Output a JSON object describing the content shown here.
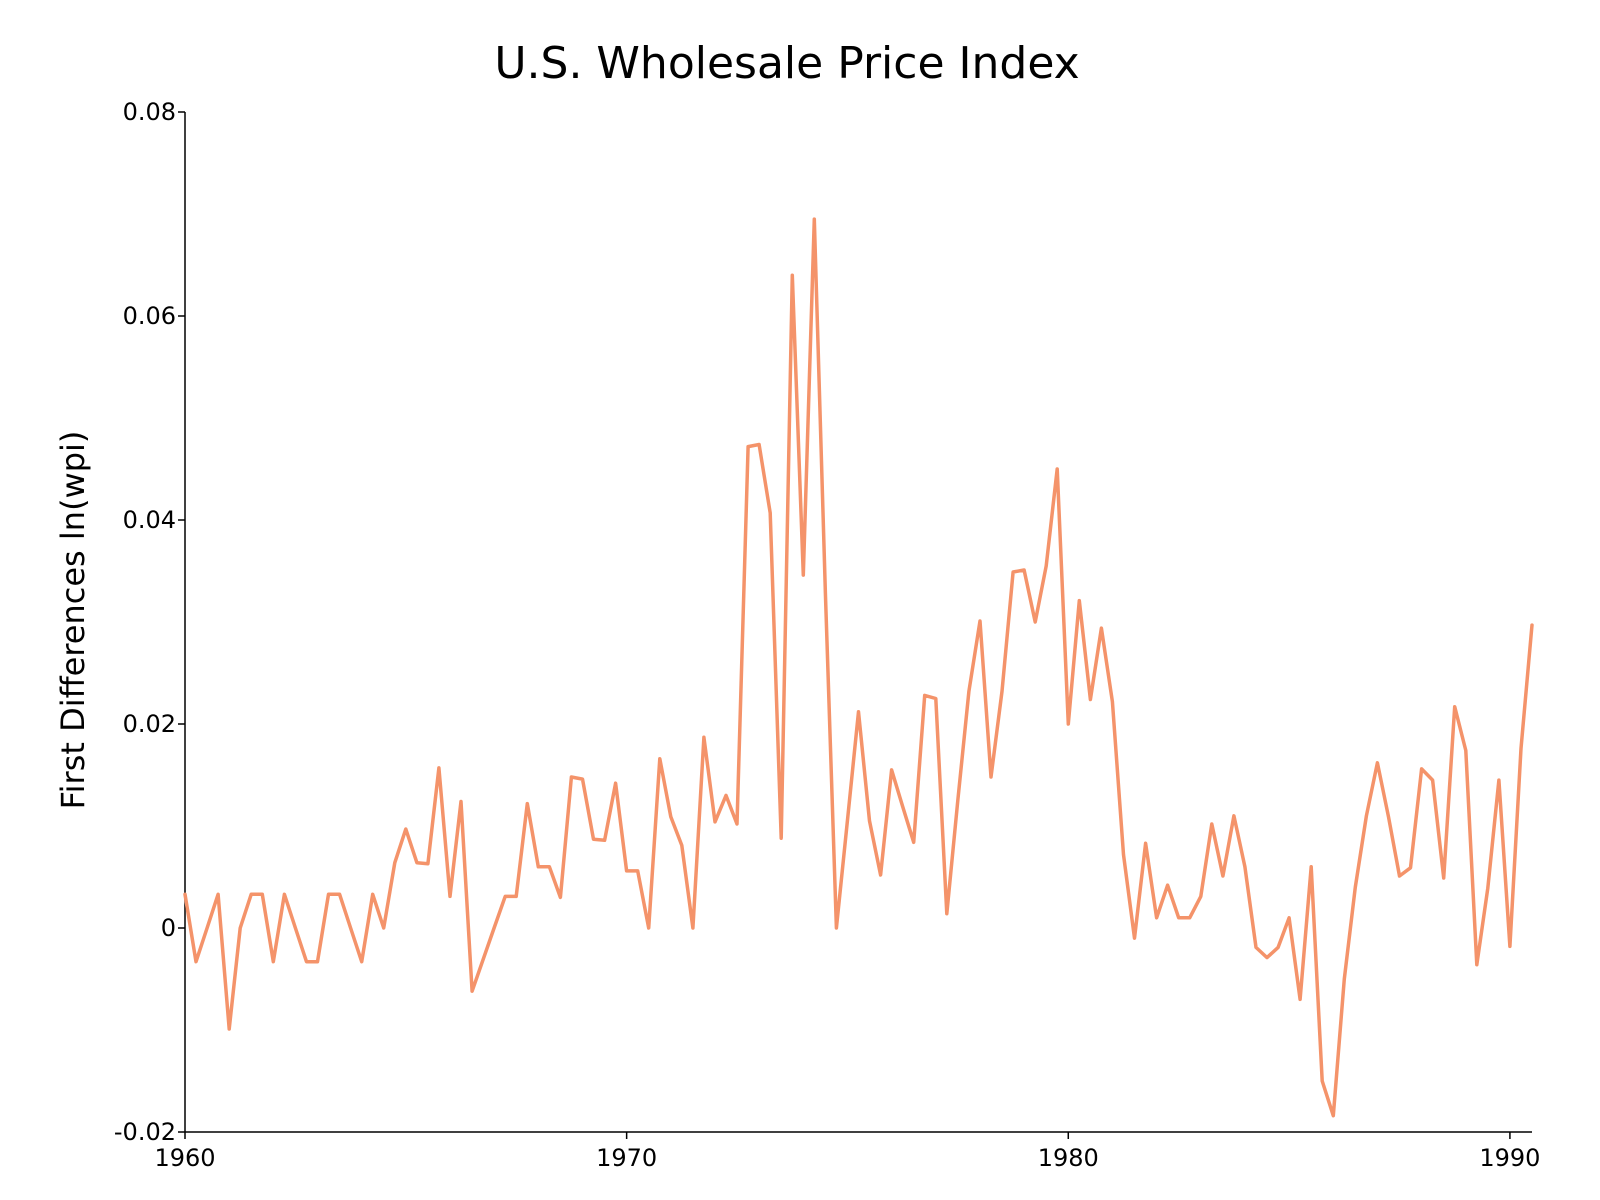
{
  "chart_data": {
    "type": "line",
    "title": "U.S. Wholesale Price Index",
    "xlabel": "",
    "ylabel": "First Differences ln(wpi)",
    "xlim": [
      1960,
      1990.5
    ],
    "ylim": [
      -0.02,
      0.08
    ],
    "xticks": [
      1960,
      1970,
      1980,
      1990
    ],
    "yticks": [
      -0.02,
      0,
      0.02,
      0.04,
      0.06,
      0.08
    ],
    "ytick_labels": [
      "-0.02",
      "0",
      "0.02",
      "0.04",
      "0.06",
      "0.08"
    ],
    "grid": false,
    "color": "#f4936a",
    "series": [
      {
        "x": [
          1960.0,
          1960.25,
          1960.5,
          1960.75,
          1961.0,
          1961.25,
          1961.5,
          1961.75,
          1962.0,
          1962.25,
          1962.5,
          1962.75,
          1963.0,
          1963.25,
          1963.5,
          1963.75,
          1964.0,
          1964.25,
          1964.5,
          1964.75,
          1965.0,
          1965.25,
          1965.5,
          1965.75,
          1966.0,
          1966.25,
          1966.5,
          1966.75,
          1967.0,
          1967.25,
          1967.5,
          1967.75,
          1968.0,
          1968.25,
          1968.5,
          1968.75,
          1969.0,
          1969.25,
          1969.5,
          1969.75,
          1970.0,
          1970.25,
          1970.5,
          1970.75,
          1971.0,
          1971.25,
          1971.5,
          1971.75,
          1972.0,
          1972.25,
          1972.5,
          1972.75,
          1973.0,
          1973.25,
          1973.5,
          1973.75,
          1974.0,
          1974.25,
          1974.5,
          1974.75,
          1975.0,
          1975.25,
          1975.5,
          1975.75,
          1976.0,
          1976.25,
          1976.5,
          1976.75,
          1977.0,
          1977.25,
          1977.5,
          1977.75,
          1978.0,
          1978.25,
          1978.5,
          1978.75,
          1979.0,
          1979.25,
          1979.5,
          1979.75,
          1980.0,
          1980.25,
          1980.5,
          1980.75,
          1981.0,
          1981.25,
          1981.5,
          1981.75,
          1982.0,
          1982.25,
          1982.5,
          1982.75,
          1983.0,
          1983.25,
          1983.5,
          1983.75,
          1984.0,
          1984.25,
          1984.5,
          1984.75,
          1985.0,
          1985.25,
          1985.5,
          1985.75,
          1986.0,
          1986.25,
          1986.5,
          1986.75,
          1987.0,
          1987.25,
          1987.5,
          1987.75,
          1988.0,
          1988.25,
          1988.5,
          1988.75,
          1989.0,
          1989.25,
          1989.5,
          1989.75,
          1990.0,
          1990.25,
          1990.5
        ],
        "y": [
          0.0033,
          -0.0033,
          0,
          0.0033,
          -0.0099,
          0,
          0.0033,
          0.0033,
          -0.0033,
          0.0033,
          0,
          -0.0033,
          -0.0033,
          0.0033,
          0.0033,
          0,
          -0.0033,
          0.0033,
          0,
          0.0064,
          0.0097,
          0.0064,
          0.0063,
          0.0157,
          0.0031,
          0.0124,
          -0.0062,
          -0.0031,
          0,
          0.0031,
          0.0031,
          0.0122,
          0.006,
          0.006,
          0.003,
          0.0148,
          0.0146,
          0.0087,
          0.0086,
          0.0142,
          0.0056,
          0.0056,
          0,
          0.0166,
          0.0109,
          0.0081,
          0,
          0.0187,
          0.0104,
          0.013,
          0.0102,
          0.0472,
          0.0474,
          0.0407,
          0.0088,
          0.064,
          0.0346,
          0.0695,
          0.0328,
          0,
          0.0106,
          0.0212,
          0.0105,
          0.0052,
          0.0155,
          0.0119,
          0.0084,
          0.0228,
          0.0225,
          0.0014,
          0.0126,
          0.0232,
          0.0301,
          0.0148,
          0.0232,
          0.0349,
          0.0351,
          0.03,
          0.0355,
          0.045,
          0.02,
          0.0321,
          0.0224,
          0.0294,
          0.0222,
          0.0072,
          -0.001,
          0.0083,
          0.001,
          0.0042,
          0.001,
          0.001,
          0.0031,
          0.0102,
          0.0051,
          0.011,
          0.006,
          -0.0019,
          -0.0029,
          -0.0019,
          0.001,
          -0.007,
          0.006,
          -0.015,
          -0.0184,
          -0.005,
          0.004,
          0.011,
          0.0162,
          0.0109,
          0.0051,
          0.0059,
          0.0156,
          0.0145,
          0.0049,
          0.0217,
          0.0174,
          -0.0036,
          0.0039,
          0.0145,
          -0.0018,
          0.0176,
          0.0297
        ]
      }
    ]
  }
}
